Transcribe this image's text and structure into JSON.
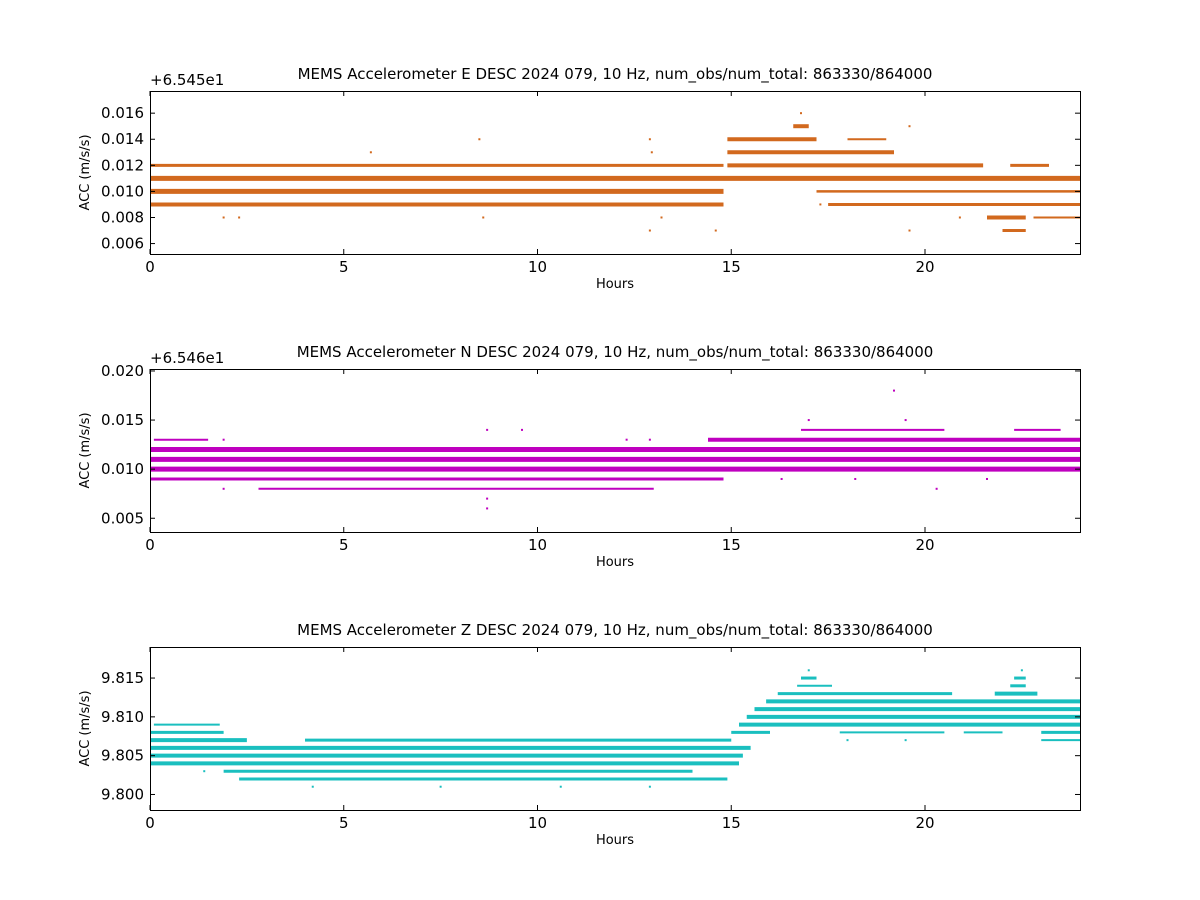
{
  "chart_data": [
    {
      "type": "scatter",
      "title": "MEMS Accelerometer E DESC 2024 079, 10 Hz, num_obs/num_total: 863330/864000",
      "xlabel": "Hours",
      "ylabel": "ACC (m/s/s)",
      "offset_text": "+6.545e1",
      "xlim": [
        0,
        24
      ],
      "ylim": [
        0.0052,
        0.0177
      ],
      "xticks": [
        0,
        5,
        10,
        15,
        20
      ],
      "yticks": [
        0.006,
        0.008,
        0.01,
        0.012,
        0.014,
        0.016
      ],
      "ytick_labels": [
        "0.006",
        "0.008",
        "0.010",
        "0.012",
        "0.014",
        "0.016"
      ],
      "color": "#d2691e",
      "series": [
        {
          "segments": [
            {
              "y": 0.011,
              "x": [
                0,
                24
              ],
              "w": 5
            },
            {
              "y": 0.01,
              "x": [
                0,
                14.8
              ],
              "w": 5
            },
            {
              "y": 0.01,
              "x": [
                17.2,
                24
              ],
              "w": 2.5
            },
            {
              "y": 0.009,
              "x": [
                0,
                14.8
              ],
              "w": 4
            },
            {
              "y": 0.009,
              "x": [
                17.5,
                24
              ],
              "w": 3
            },
            {
              "y": 0.012,
              "x": [
                0,
                14.8
              ],
              "w": 3
            },
            {
              "y": 0.012,
              "x": [
                14.9,
                21.5
              ],
              "w": 4
            },
            {
              "y": 0.012,
              "x": [
                22.2,
                23.2
              ],
              "w": 3
            },
            {
              "y": 0.013,
              "x": [
                14.9,
                19.2
              ],
              "w": 4
            },
            {
              "y": 0.014,
              "x": [
                14.9,
                17.2
              ],
              "w": 4
            },
            {
              "y": 0.014,
              "x": [
                18.0,
                19.0
              ],
              "w": 2
            },
            {
              "y": 0.015,
              "x": [
                16.6,
                17.0
              ],
              "w": 4
            },
            {
              "y": 0.008,
              "x": [
                21.6,
                22.6
              ],
              "w": 4
            },
            {
              "y": 0.008,
              "x": [
                22.8,
                24
              ],
              "w": 2
            },
            {
              "y": 0.007,
              "x": [
                22.0,
                22.6
              ],
              "w": 3
            }
          ],
          "points": [
            {
              "x": 1.9,
              "y": 0.008
            },
            {
              "x": 2.3,
              "y": 0.008
            },
            {
              "x": 5.7,
              "y": 0.013
            },
            {
              "x": 8.5,
              "y": 0.014
            },
            {
              "x": 8.6,
              "y": 0.008
            },
            {
              "x": 12.9,
              "y": 0.014
            },
            {
              "x": 12.95,
              "y": 0.013
            },
            {
              "x": 12.9,
              "y": 0.007
            },
            {
              "x": 13.2,
              "y": 0.008
            },
            {
              "x": 14.6,
              "y": 0.007
            },
            {
              "x": 16.8,
              "y": 0.016
            },
            {
              "x": 19.6,
              "y": 0.015
            },
            {
              "x": 19.6,
              "y": 0.007
            },
            {
              "x": 17.3,
              "y": 0.009
            },
            {
              "x": 18.0,
              "y": 0.009
            },
            {
              "x": 20.9,
              "y": 0.008
            }
          ]
        }
      ]
    },
    {
      "type": "scatter",
      "title": "MEMS Accelerometer N DESC 2024 079, 10 Hz, num_obs/num_total: 863330/864000",
      "xlabel": "Hours",
      "ylabel": "ACC (m/s/s)",
      "offset_text": "+6.546e1",
      "xlim": [
        0,
        24
      ],
      "ylim": [
        0.0036,
        0.0202
      ],
      "xticks": [
        0,
        5,
        10,
        15,
        20
      ],
      "yticks": [
        0.005,
        0.01,
        0.015,
        0.02
      ],
      "ytick_labels": [
        "0.005",
        "0.010",
        "0.015",
        "0.020"
      ],
      "color": "#bf00bf",
      "series": [
        {
          "segments": [
            {
              "y": 0.012,
              "x": [
                0,
                24
              ],
              "w": 5
            },
            {
              "y": 0.011,
              "x": [
                0,
                24
              ],
              "w": 5
            },
            {
              "y": 0.01,
              "x": [
                0,
                24
              ],
              "w": 5
            },
            {
              "y": 0.009,
              "x": [
                0,
                14.8
              ],
              "w": 3
            },
            {
              "y": 0.013,
              "x": [
                0.1,
                1.5
              ],
              "w": 2
            },
            {
              "y": 0.013,
              "x": [
                14.4,
                24
              ],
              "w": 4
            },
            {
              "y": 0.014,
              "x": [
                16.8,
                20.5
              ],
              "w": 2
            },
            {
              "y": 0.014,
              "x": [
                22.3,
                23.5
              ],
              "w": 2
            },
            {
              "y": 0.008,
              "x": [
                2.8,
                13.0
              ],
              "w": 2
            }
          ],
          "points": [
            {
              "x": 1.9,
              "y": 0.013
            },
            {
              "x": 1.9,
              "y": 0.008
            },
            {
              "x": 8.7,
              "y": 0.014
            },
            {
              "x": 9.6,
              "y": 0.014
            },
            {
              "x": 8.7,
              "y": 0.007
            },
            {
              "x": 8.7,
              "y": 0.006
            },
            {
              "x": 12.3,
              "y": 0.013
            },
            {
              "x": 12.9,
              "y": 0.013
            },
            {
              "x": 17.0,
              "y": 0.015
            },
            {
              "x": 19.2,
              "y": 0.018
            },
            {
              "x": 19.5,
              "y": 0.015
            },
            {
              "x": 20.3,
              "y": 0.008
            },
            {
              "x": 16.3,
              "y": 0.009
            },
            {
              "x": 18.2,
              "y": 0.009
            },
            {
              "x": 21.6,
              "y": 0.009
            }
          ]
        }
      ]
    },
    {
      "type": "scatter",
      "title": "MEMS Accelerometer Z DESC 2024 079, 10 Hz, num_obs/num_total: 863330/864000",
      "xlabel": "Hours",
      "ylabel": "ACC (m/s/s)",
      "offset_text": "",
      "xlim": [
        0,
        24
      ],
      "ylim": [
        9.798,
        9.819
      ],
      "xticks": [
        0,
        5,
        10,
        15,
        20
      ],
      "yticks": [
        9.8,
        9.805,
        9.81,
        9.815
      ],
      "ytick_labels": [
        "9.800",
        "9.805",
        "9.810",
        "9.815"
      ],
      "color": "#1abfbf",
      "series": [
        {
          "segments": [
            {
              "y": 9.809,
              "x": [
                0.1,
                1.8
              ],
              "w": 2
            },
            {
              "y": 9.808,
              "x": [
                0,
                1.9
              ],
              "w": 3
            },
            {
              "y": 9.807,
              "x": [
                0,
                2.5
              ],
              "w": 4
            },
            {
              "y": 9.806,
              "x": [
                0,
                15.5
              ],
              "w": 4
            },
            {
              "y": 9.805,
              "x": [
                0,
                15.3
              ],
              "w": 4
            },
            {
              "y": 9.804,
              "x": [
                0,
                15.2
              ],
              "w": 4
            },
            {
              "y": 9.807,
              "x": [
                4.0,
                15.0
              ],
              "w": 3
            },
            {
              "y": 9.803,
              "x": [
                1.9,
                14.0
              ],
              "w": 3
            },
            {
              "y": 9.802,
              "x": [
                2.3,
                14.9
              ],
              "w": 3
            },
            {
              "y": 9.808,
              "x": [
                15.0,
                16.0
              ],
              "w": 3
            },
            {
              "y": 9.809,
              "x": [
                15.2,
                24
              ],
              "w": 4
            },
            {
              "y": 9.81,
              "x": [
                15.4,
                24
              ],
              "w": 4
            },
            {
              "y": 9.811,
              "x": [
                15.6,
                24
              ],
              "w": 4
            },
            {
              "y": 9.812,
              "x": [
                15.9,
                24
              ],
              "w": 4
            },
            {
              "y": 9.813,
              "x": [
                16.2,
                20.7
              ],
              "w": 3
            },
            {
              "y": 9.813,
              "x": [
                21.8,
                22.9
              ],
              "w": 4
            },
            {
              "y": 9.814,
              "x": [
                16.7,
                17.6
              ],
              "w": 2
            },
            {
              "y": 9.808,
              "x": [
                23.0,
                24
              ],
              "w": 3
            },
            {
              "y": 9.807,
              "x": [
                23.0,
                24
              ],
              "w": 2
            },
            {
              "y": 9.808,
              "x": [
                17.8,
                20.5
              ],
              "w": 2
            },
            {
              "y": 9.808,
              "x": [
                21.0,
                22.0
              ],
              "w": 2
            },
            {
              "y": 9.815,
              "x": [
                16.8,
                17.2
              ],
              "w": 3
            },
            {
              "y": 9.814,
              "x": [
                22.2,
                22.6
              ],
              "w": 3
            },
            {
              "y": 9.815,
              "x": [
                22.3,
                22.6
              ],
              "w": 3
            }
          ],
          "points": [
            {
              "x": 1.4,
              "y": 9.803
            },
            {
              "x": 4.2,
              "y": 9.801
            },
            {
              "x": 7.5,
              "y": 9.801
            },
            {
              "x": 10.6,
              "y": 9.801
            },
            {
              "x": 12.9,
              "y": 9.801
            },
            {
              "x": 17.0,
              "y": 9.816
            },
            {
              "x": 22.5,
              "y": 9.816
            },
            {
              "x": 18.0,
              "y": 9.807
            },
            {
              "x": 19.5,
              "y": 9.807
            }
          ]
        }
      ]
    }
  ]
}
